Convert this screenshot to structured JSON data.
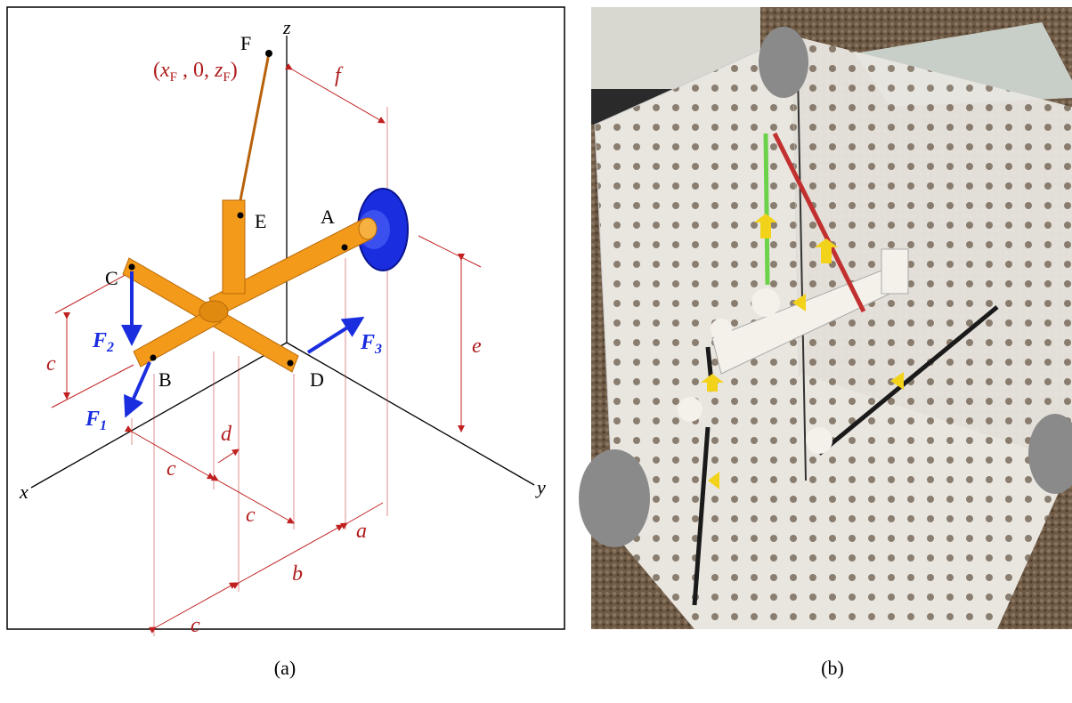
{
  "panel_a": {
    "axes": {
      "x": "x",
      "y": "y",
      "z": "z"
    },
    "points": {
      "F": "F",
      "E": "E",
      "A": "A",
      "C": "C",
      "B": "B",
      "D": "D"
    },
    "coordinate": {
      "open": "(",
      "x": "x",
      "x_sub": "F",
      "middle": " , 0, ",
      "z": "z",
      "z_sub": "F",
      "close": ")"
    },
    "forces": [
      {
        "symbol": "F",
        "subscript": "2"
      },
      {
        "symbol": "F",
        "subscript": "3"
      },
      {
        "symbol": "F",
        "subscript": "1"
      }
    ],
    "dimensions": [
      "f",
      "e",
      "c",
      "d",
      "c",
      "c",
      "a",
      "b",
      "c"
    ],
    "caption": "(a)"
  },
  "panel_b": {
    "caption": "(b)"
  }
}
